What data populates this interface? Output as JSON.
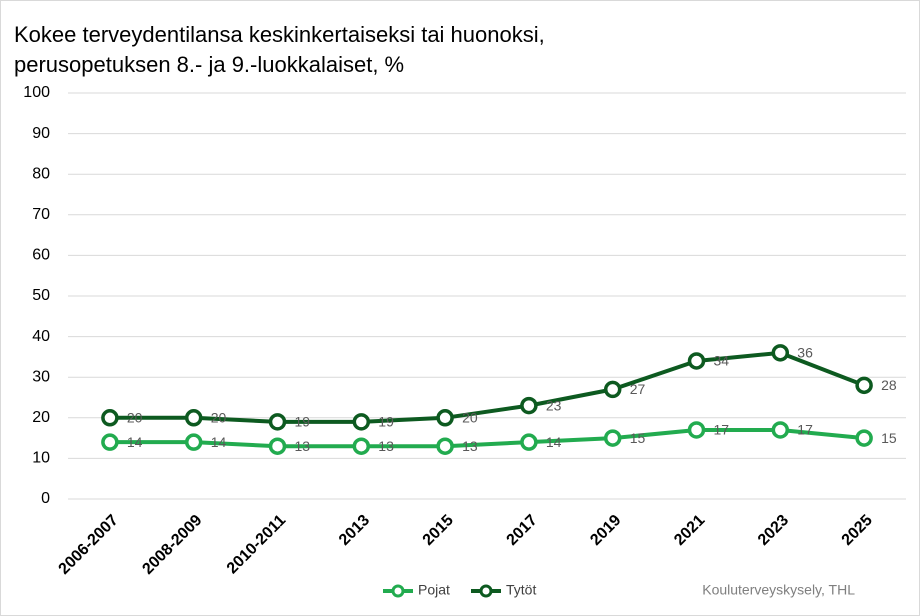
{
  "chart_data": {
    "type": "line",
    "title": [
      "Kokee terveydentilansa keskinkertaiseksi tai huonoksi,",
      "perusopetuksen 8.- ja 9.-luokkalaiset, %"
    ],
    "categories": [
      "2006-2007",
      "2008-2009",
      "2010-2011",
      "2013",
      "2015",
      "2017",
      "2019",
      "2021",
      "2023",
      "2025"
    ],
    "series": [
      {
        "name": "Pojat",
        "color": "#22ab4f",
        "values": [
          14,
          14,
          13,
          13,
          13,
          14,
          15,
          17,
          17,
          15
        ]
      },
      {
        "name": "Tytöt",
        "color": "#0d5a20",
        "values": [
          20,
          20,
          19,
          19,
          20,
          23,
          27,
          34,
          36,
          28
        ]
      }
    ],
    "ylim": [
      0,
      100
    ],
    "yticks": [
      0,
      10,
      20,
      30,
      40,
      50,
      60,
      70,
      80,
      90,
      100
    ],
    "grid": true,
    "legend": "bottom",
    "source": "Kouluterveyskysely, THL"
  }
}
